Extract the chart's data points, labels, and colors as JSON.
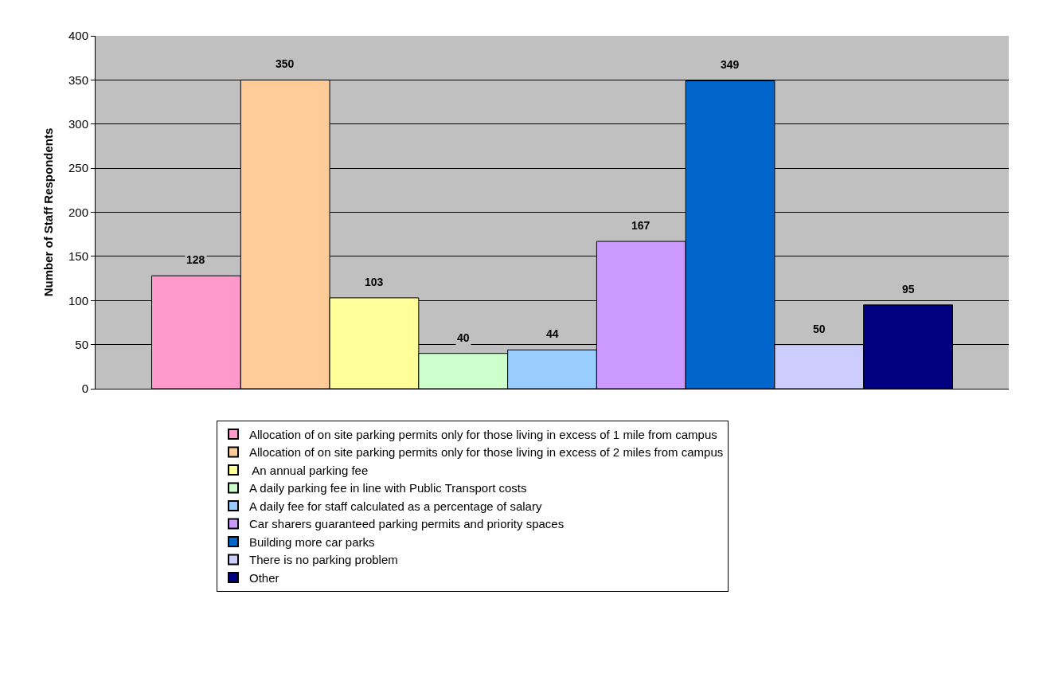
{
  "chart_data": {
    "type": "bar",
    "ylabel": "Number of Staff Respondents",
    "categories": [
      null
    ],
    "series": [
      {
        "name": "Allocation of on site parking permits only for those living in excess of 1 mile from campus",
        "color": "#ff99cc",
        "values": [
          128
        ]
      },
      {
        "name": "Allocation of on site parking permits only for those living in excess of 2 miles from campus",
        "color": "#ffcc99",
        "values": [
          350
        ]
      },
      {
        "name": " An annual parking fee",
        "color": "#ffff99",
        "values": [
          103
        ]
      },
      {
        "name": "A daily parking fee in line with Public Transport costs",
        "color": "#ccffcc",
        "values": [
          40
        ]
      },
      {
        "name": "A daily fee for staff calculated as a percentage of salary",
        "color": "#99ccff",
        "values": [
          44
        ]
      },
      {
        "name": "Car sharers guaranteed parking permits and priority spaces",
        "color": "#cc99ff",
        "values": [
          167
        ]
      },
      {
        "name": "Building more car parks",
        "color": "#0066cc",
        "values": [
          349
        ]
      },
      {
        "name": "There is no parking problem",
        "color": "#ccccff",
        "values": [
          50
        ]
      },
      {
        "name": "Other",
        "color": "#000080",
        "values": [
          95
        ]
      }
    ],
    "ylim": [
      0,
      400
    ],
    "yticks": [
      0,
      50,
      100,
      150,
      200,
      250,
      300,
      350,
      400
    ],
    "grid": "y",
    "legend": "bottom",
    "data_labels": true,
    "tick_labels": "y"
  }
}
